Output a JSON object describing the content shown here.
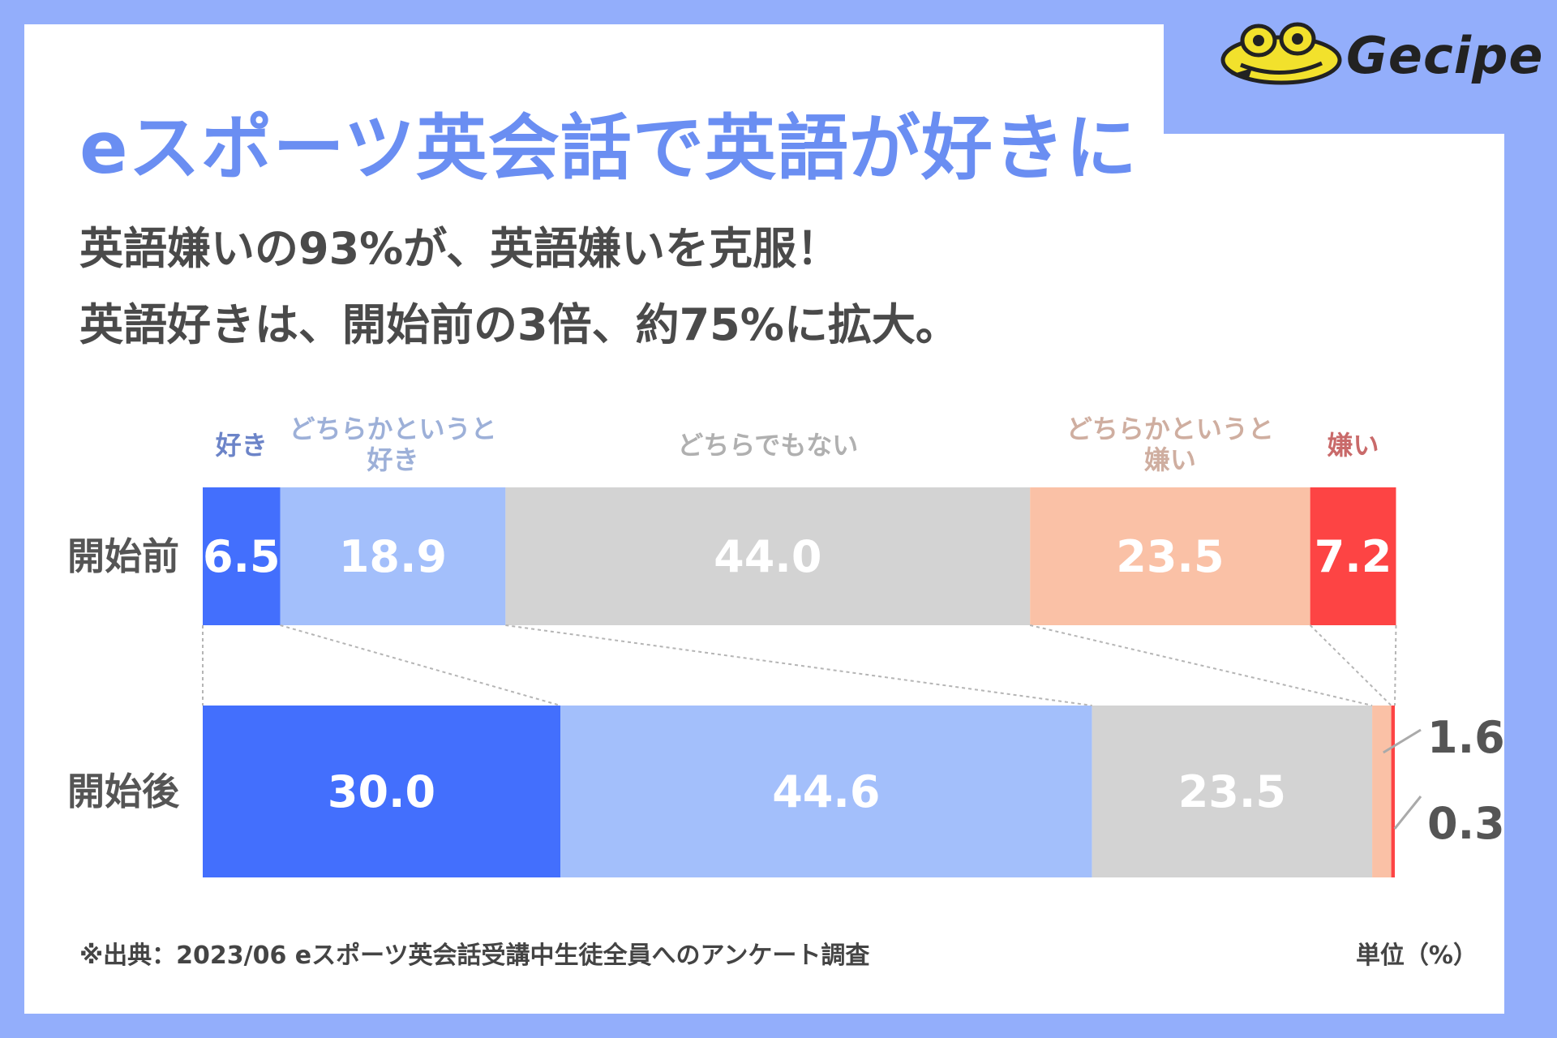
{
  "brand": {
    "name": "Gecipe"
  },
  "header": {
    "title": "eスポーツ英会話で英語が好きに",
    "subtitle_line1": "英語嫌いの93%が、英語嫌いを克服！",
    "subtitle_line2": "英語好きは、開始前の3倍、約75%に拡大。"
  },
  "footer": {
    "source": "※出典：2023/06 eスポーツ英会話受講中生徒全員へのアンケート調査",
    "unit": "単位（%）"
  },
  "chart_data": {
    "type": "bar",
    "orientation": "horizontal",
    "stacked": true,
    "xlim": [
      0,
      100
    ],
    "categories": [
      "開始前",
      "開始後"
    ],
    "series": [
      {
        "name": "好き",
        "label_lines": [
          "好き"
        ],
        "color": "#436ffd",
        "label_color": "#6c84c8",
        "values": [
          6.5,
          30.0
        ]
      },
      {
        "name": "どちらかというと好き",
        "label_lines": [
          "どちらかというと",
          "好き"
        ],
        "color": "#a3bffb",
        "label_color": "#9db0d8",
        "values": [
          18.9,
          44.6
        ]
      },
      {
        "name": "どちらでもない",
        "label_lines": [
          "どちらでもない"
        ],
        "color": "#d3d3d3",
        "label_color": "#b0b0b0",
        "values": [
          44.0,
          23.5
        ]
      },
      {
        "name": "どちらかというと嫌い",
        "label_lines": [
          "どちらかというと",
          "嫌い"
        ],
        "color": "#fac1a6",
        "label_color": "#cfaea0",
        "values": [
          23.5,
          1.6
        ]
      },
      {
        "name": "嫌い",
        "label_lines": [
          "嫌い"
        ],
        "color": "#fd4444",
        "label_color": "#c96a6a",
        "values": [
          7.2,
          0.3
        ]
      }
    ],
    "value_labels": [
      [
        "6.5",
        "18.9",
        "44.0",
        "23.5",
        "7.2"
      ],
      [
        "30.0",
        "44.6",
        "23.5",
        "1.6",
        "0.3"
      ]
    ],
    "outside_label_color": "#555555"
  }
}
